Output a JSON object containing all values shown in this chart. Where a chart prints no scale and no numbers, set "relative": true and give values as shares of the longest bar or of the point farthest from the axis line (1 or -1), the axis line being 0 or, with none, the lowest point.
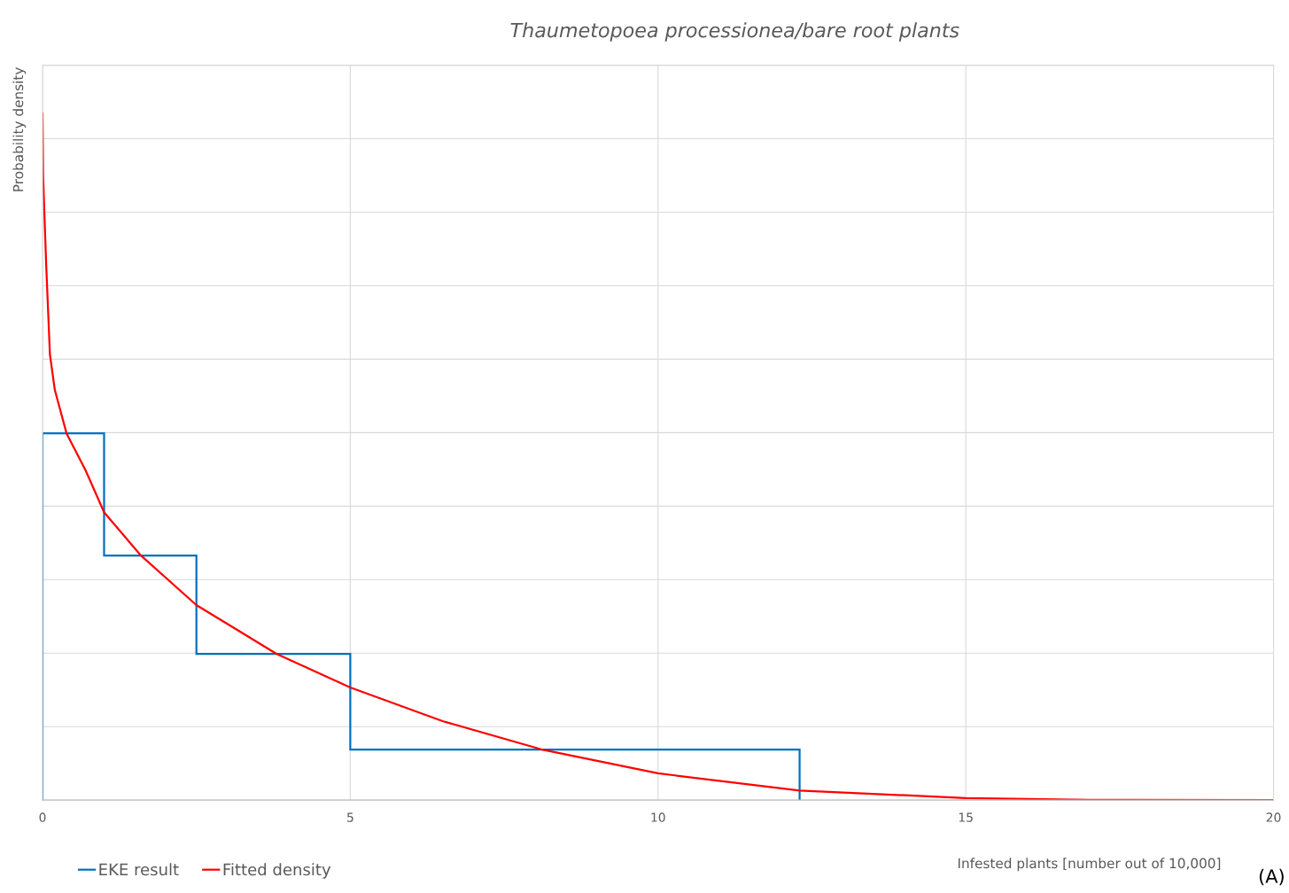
{
  "chart_data": {
    "type": "line",
    "title": "Thaumetopoea processionea/bare root plants",
    "xlabel": "Infested plants [number out of 10,000]",
    "ylabel": "Probability density",
    "relative": true,
    "xlim": [
      0,
      20
    ],
    "xticks": [
      0,
      5,
      10,
      15,
      20
    ],
    "grid": true,
    "legend": "bottom left",
    "series": [
      {
        "name": "EKE result",
        "type": "histogram",
        "color": "#0070c0",
        "bins": [
          0,
          1,
          2.5,
          5,
          12.3
        ],
        "values": [
          0.534,
          0.356,
          0.213,
          0.0735
        ]
      },
      {
        "name": "Fitted density",
        "color": "#ff0000",
        "x": [
          0,
          0.01,
          0.06,
          0.12,
          0.2,
          0.39,
          0.7,
          1,
          1.6,
          2.5,
          3.8,
          5,
          6.5,
          8.1,
          10,
          12.3,
          15,
          17,
          20
        ],
        "values": [
          1.0,
          0.907,
          0.778,
          0.649,
          0.597,
          0.534,
          0.48,
          0.419,
          0.356,
          0.284,
          0.213,
          0.164,
          0.115,
          0.074,
          0.039,
          0.014,
          0.003,
          0.0005,
          0
        ]
      }
    ],
    "annotations": [
      "(A)"
    ]
  }
}
